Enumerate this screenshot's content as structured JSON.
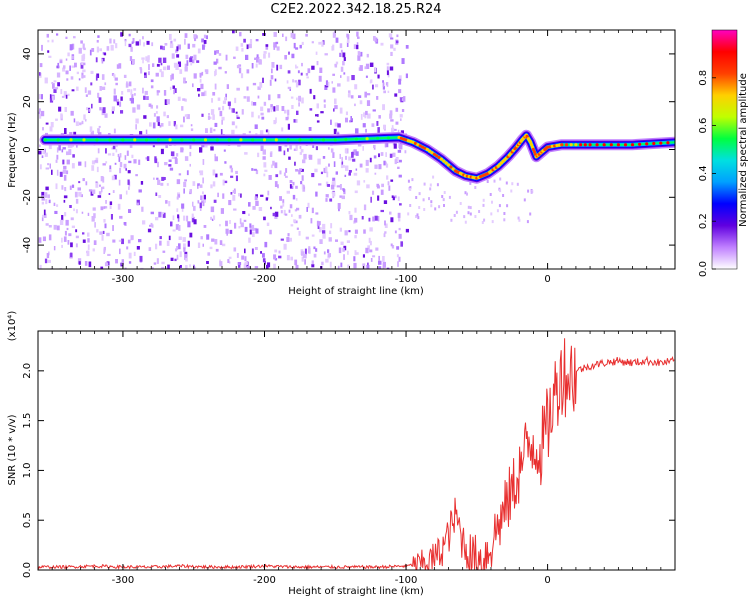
{
  "title": "C2E2.2022.342.18.25.R24",
  "chart_data": [
    {
      "type": "heatmap",
      "xlabel": "Height of straight line (km)",
      "ylabel": "Frequency (Hz)",
      "xlim": [
        -360,
        90
      ],
      "ylim": [
        -50,
        50
      ],
      "x_ticks": [
        -300,
        -200,
        -100,
        0
      ],
      "y_ticks": [
        -40,
        -20,
        0,
        20,
        40
      ],
      "x_tick_labels": [
        "-300",
        "-200",
        "-100",
        "0"
      ],
      "y_tick_labels": [
        "-40",
        "-20",
        "0",
        "20",
        "40"
      ],
      "colorbar": {
        "label": "Normalized spectral amplitude",
        "range": [
          0,
          1
        ],
        "ticks": [
          0.0,
          0.2,
          0.4,
          0.6,
          0.8
        ],
        "tick_labels": [
          "0.0",
          "0.2",
          "0.4",
          "0.6",
          "0.8"
        ],
        "colors": [
          "#ffffff",
          "#c080ff",
          "#6000e0",
          "#0000ff",
          "#00a0ff",
          "#00e0e0",
          "#00ff40",
          "#c0ff00",
          "#ffd000",
          "#ff4000",
          "#ff0000",
          "#ff00c0"
        ]
      },
      "ridge": {
        "x": [
          -355,
          -300,
          -250,
          -200,
          -150,
          -105,
          -95,
          -85,
          -75,
          -65,
          -58,
          -50,
          -42,
          -35,
          -28,
          -22,
          -18,
          -15,
          -12,
          -8,
          -4,
          0,
          10,
          30,
          60,
          90
        ],
        "y": [
          4,
          4,
          4,
          4,
          4,
          5,
          3,
          0,
          -4,
          -9,
          -11,
          -12,
          -10,
          -7,
          -3,
          1,
          4,
          6,
          3,
          -3,
          -1,
          1,
          2,
          2,
          2,
          3
        ]
      }
    },
    {
      "type": "line",
      "xlabel": "Height of straight line (km)",
      "ylabel": "SNR (10 * v/v)",
      "y_multiplier": "(x10⁴)",
      "xlim": [
        -360,
        90
      ],
      "ylim": [
        0,
        2.4
      ],
      "x_ticks": [
        -300,
        -200,
        -100,
        0
      ],
      "y_ticks": [
        0.0,
        0.5,
        1.0,
        1.5,
        2.0
      ],
      "x_tick_labels": [
        "-300",
        "-200",
        "-100",
        "0"
      ],
      "y_tick_labels": [
        "0.0",
        "0.5",
        "1.0",
        "1.5",
        "2.0"
      ],
      "series": [
        {
          "color": "#e83030",
          "x": [
            -360,
            -340,
            -320,
            -300,
            -280,
            -260,
            -240,
            -220,
            -200,
            -180,
            -160,
            -140,
            -120,
            -100,
            -90,
            -80,
            -75,
            -70,
            -65,
            -60,
            -55,
            -50,
            -45,
            -40,
            -35,
            -30,
            -25,
            -20,
            -15,
            -10,
            -5,
            0,
            5,
            10,
            15,
            20,
            30,
            40,
            50,
            60,
            70,
            80,
            90
          ],
          "values": [
            0.03,
            0.03,
            0.04,
            0.03,
            0.03,
            0.04,
            0.03,
            0.03,
            0.04,
            0.03,
            0.03,
            0.03,
            0.03,
            0.04,
            0.06,
            0.12,
            0.2,
            0.35,
            0.55,
            0.3,
            0.15,
            0.1,
            0.12,
            0.25,
            0.45,
            0.6,
            0.8,
            1.0,
            1.2,
            1.3,
            1.2,
            1.45,
            1.75,
            2.0,
            1.95,
            2.0,
            2.05,
            2.08,
            2.1,
            2.08,
            2.1,
            2.08,
            2.1
          ]
        }
      ]
    }
  ]
}
